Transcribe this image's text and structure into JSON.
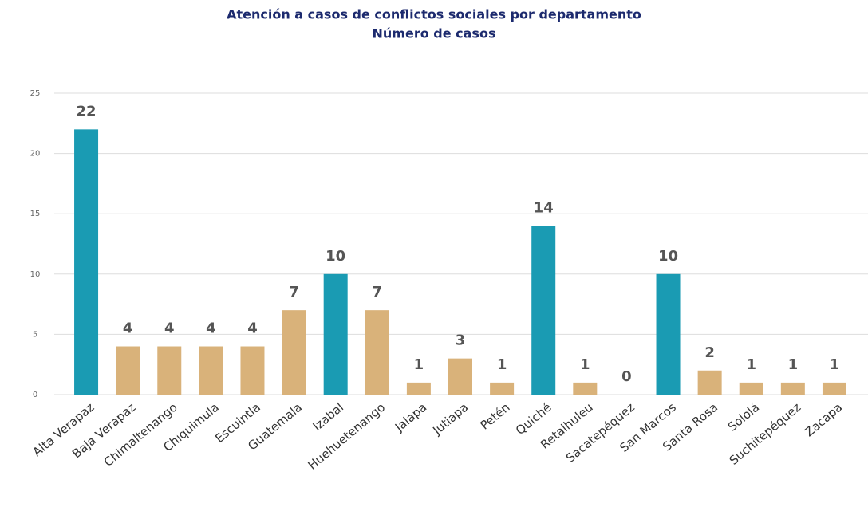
{
  "chart_data": {
    "type": "bar",
    "title": "Atención a casos de conflictos sociales por departamento",
    "subtitle": "Número de casos",
    "categories": [
      "Alta Verapaz",
      "Baja Verapaz",
      "Chimaltenango",
      "Chiquimula",
      "Escuintla",
      "Guatemala",
      "Izabal",
      "Huehuetenango",
      "Jalapa",
      "Jutiapa",
      "Petén",
      "Quiché",
      "Retalhuleu",
      "Sacatepéquez",
      "San Marcos",
      "Santa Rosa",
      "Sololá",
      "Suchitepéquez",
      "Zacapa"
    ],
    "values": [
      22,
      4,
      4,
      4,
      4,
      7,
      10,
      7,
      1,
      3,
      1,
      14,
      1,
      0,
      10,
      2,
      1,
      1,
      1
    ],
    "colors": [
      "#1a9bb3",
      "#d9b27a",
      "#d9b27a",
      "#d9b27a",
      "#d9b27a",
      "#d9b27a",
      "#1a9bb3",
      "#d9b27a",
      "#d9b27a",
      "#d9b27a",
      "#d9b27a",
      "#1a9bb3",
      "#d9b27a",
      "#d9b27a",
      "#1a9bb3",
      "#d9b27a",
      "#d9b27a",
      "#d9b27a",
      "#d9b27a"
    ],
    "ylim": [
      0,
      25
    ],
    "yticks": [
      0,
      5,
      10,
      15,
      20,
      25
    ],
    "grid": true
  }
}
